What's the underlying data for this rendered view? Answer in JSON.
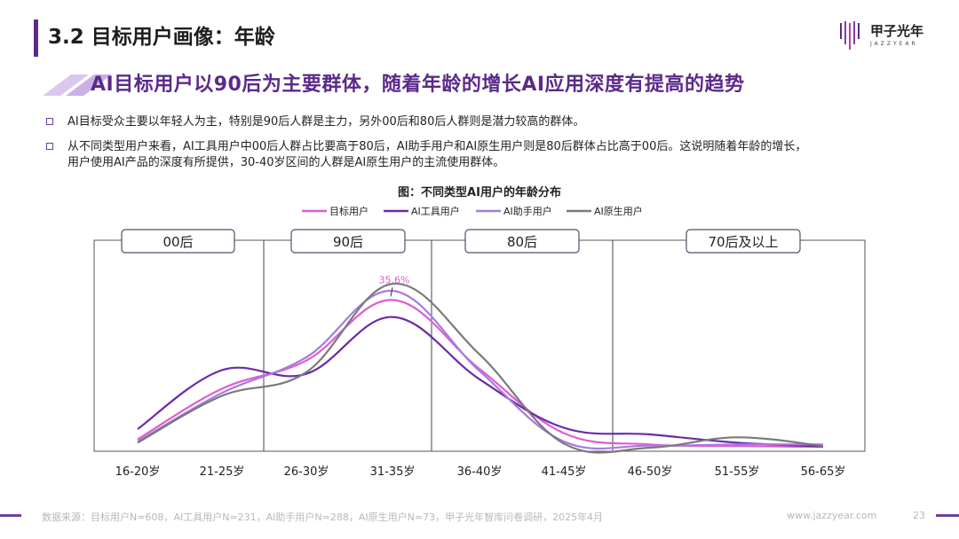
{
  "header": {
    "title": "3.2 目标用户画像：年龄",
    "logo_cn": "甲子光年",
    "logo_en": "JAZZYEAR"
  },
  "subtitle": "AI目标用户以90后为主要群体，随着年龄的增长AI应用深度有提高的趋势",
  "bullets": [
    {
      "text": "AI目标受众主要以年轻人为主，特别是90后人群是主力，另外00后和80后人群则是潜力较高的群体。"
    },
    {
      "line1": "从不同类型用户来看，AI工具用户中00后人群占比要高于80后，AI助手用户和AI原生用户则是80后群体占比高于00后。这说明随着年龄的增长，",
      "line2": "用户使用AI产品的深度有所提供，30-40岁区间的人群是AI原生用户的主流使用群体。"
    }
  ],
  "footer": {
    "source": "数据来源：目标用户N=608，AI工具用户N=231，AI助手用户N=288，AI原生用户N=73，甲子光年智库问卷调研，2025年4月",
    "url": "www.jazzyear.com",
    "page": "23"
  },
  "colors": {
    "accent": "#5b2a8a",
    "series": [
      "#e05ccf",
      "#6a2aa8",
      "#a77be0",
      "#7a7a7a"
    ]
  },
  "chart_data": {
    "type": "line",
    "title": "图：不同类型AI用户的年龄分布",
    "categories": [
      "16-20岁",
      "21-25岁",
      "26-30岁",
      "31-35岁",
      "36-40岁",
      "41-45岁",
      "46-50岁",
      "51-55岁",
      "56-65岁"
    ],
    "series": [
      {
        "name": "目标用户",
        "values": [
          2.0,
          14.2,
          21.0,
          35.6,
          19.0,
          3.5,
          0.8,
          0.4,
          0.2
        ]
      },
      {
        "name": "AI工具用户",
        "values": [
          4.5,
          18.7,
          17.8,
          31.5,
          16.5,
          4.8,
          3.2,
          1.2,
          0.3
        ]
      },
      {
        "name": "AI助手用户",
        "values": [
          1.5,
          13.2,
          21.8,
          37.8,
          18.5,
          1.5,
          0.5,
          0.8,
          0.8
        ]
      },
      {
        "name": "AI原生用户",
        "values": [
          1.2,
          12.5,
          18.2,
          39.5,
          22.5,
          1.0,
          0.0,
          2.5,
          0.4
        ]
      }
    ],
    "ylim": [
      0,
      50
    ],
    "grid": false,
    "legend": "top",
    "annotations": [
      {
        "category": "31-35岁",
        "series": "目标用户",
        "label": "35.6%"
      }
    ],
    "age_groups": [
      "00后",
      "90后",
      "80后",
      "70后及以上"
    ]
  }
}
